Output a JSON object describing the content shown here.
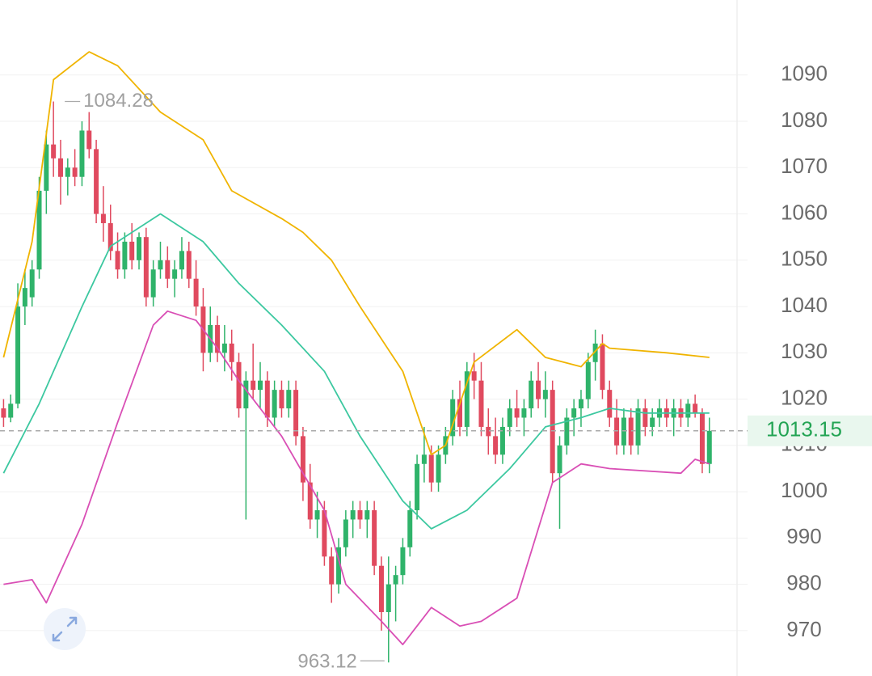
{
  "chart_data": {
    "type": "candlestick",
    "up_color": "#2fb36a",
    "down_color": "#e04a5f",
    "open": [
      1018,
      1016,
      1019,
      1040,
      1042,
      1048,
      1065,
      1075,
      1072,
      1068,
      1070,
      1068,
      1078,
      1074,
      1060,
      1058,
      1052,
      1048,
      1054,
      1050,
      1055,
      1042,
      1048,
      1050,
      1046,
      1048,
      1052,
      1046,
      1040,
      1030,
      1036,
      1030,
      1032,
      1028,
      1018,
      1024,
      1022,
      1024,
      1016,
      1022,
      1018,
      1022,
      1012,
      1002,
      994,
      996,
      986,
      980,
      988,
      994,
      996,
      994,
      996,
      984,
      974,
      980,
      982,
      988,
      996,
      1006,
      1008,
      1002,
      1008,
      1012,
      1020,
      1014,
      1026,
      1024,
      1014,
      1012,
      1008,
      1014,
      1018,
      1016,
      1018,
      1024,
      1020,
      1022,
      1004,
      1010,
      1016,
      1018,
      1020,
      1028,
      1032,
      1022,
      1016,
      1010,
      1016,
      1010,
      1018,
      1014,
      1016,
      1018,
      1016,
      1018,
      1016,
      1019,
      1017,
      1006
    ],
    "high": [
      1020,
      1021,
      1045,
      1048,
      1050,
      1068,
      1078,
      1084.28,
      1076,
      1072,
      1074,
      1080,
      1082,
      1076,
      1066,
      1062,
      1056,
      1056,
      1058,
      1056,
      1057,
      1050,
      1054,
      1053,
      1050,
      1055,
      1054,
      1050,
      1044,
      1040,
      1038,
      1036,
      1035,
      1030,
      1026,
      1032,
      1028,
      1026,
      1024,
      1024,
      1024,
      1024,
      1014,
      1006,
      1000,
      998,
      988,
      990,
      996,
      998,
      998,
      998,
      998,
      986,
      986,
      984,
      990,
      998,
      1008,
      1014,
      1010,
      1010,
      1014,
      1022,
      1024,
      1028,
      1030,
      1028,
      1018,
      1016,
      1016,
      1020,
      1022,
      1020,
      1026,
      1028,
      1026,
      1024,
      1012,
      1018,
      1020,
      1022,
      1030,
      1035,
      1034,
      1024,
      1020,
      1018,
      1018,
      1020,
      1020,
      1018,
      1020,
      1020,
      1020,
      1020,
      1020,
      1021,
      1018,
      1016
    ],
    "low": [
      1014,
      1015,
      1018,
      1036,
      1040,
      1046,
      1060,
      1068,
      1062,
      1064,
      1066,
      1066,
      1072,
      1058,
      1054,
      1050,
      1046,
      1046,
      1048,
      1048,
      1040,
      1040,
      1046,
      1044,
      1042,
      1046,
      1044,
      1038,
      1026,
      1028,
      1028,
      1026,
      1024,
      1016,
      994,
      1020,
      1018,
      1014,
      1014,
      1016,
      1016,
      1010,
      998,
      992,
      990,
      984,
      976,
      978,
      986,
      990,
      992,
      990,
      982,
      970,
      963.12,
      972,
      980,
      986,
      994,
      1002,
      1000,
      1000,
      1006,
      1010,
      1012,
      1012,
      1020,
      1012,
      1008,
      1006,
      1006,
      1012,
      1014,
      1012,
      1016,
      1018,
      1016,
      1002,
      992,
      1008,
      1012,
      1014,
      1018,
      1024,
      1020,
      1014,
      1008,
      1008,
      1008,
      1008,
      1012,
      1012,
      1014,
      1014,
      1012,
      1014,
      1014,
      1016,
      1004,
      1004
    ],
    "close": [
      1016,
      1019,
      1040,
      1044,
      1048,
      1065,
      1075,
      1072,
      1068,
      1070,
      1068,
      1078,
      1074,
      1060,
      1058,
      1052,
      1048,
      1054,
      1050,
      1055,
      1042,
      1048,
      1050,
      1046,
      1048,
      1052,
      1046,
      1040,
      1030,
      1036,
      1030,
      1032,
      1028,
      1018,
      1024,
      1022,
      1024,
      1016,
      1022,
      1018,
      1022,
      1012,
      1002,
      994,
      996,
      986,
      980,
      988,
      994,
      996,
      994,
      996,
      984,
      974,
      980,
      982,
      988,
      996,
      1006,
      1008,
      1002,
      1008,
      1012,
      1020,
      1014,
      1026,
      1024,
      1014,
      1012,
      1008,
      1014,
      1018,
      1016,
      1018,
      1024,
      1020,
      1022,
      1004,
      1010,
      1016,
      1018,
      1020,
      1028,
      1032,
      1022,
      1016,
      1010,
      1016,
      1010,
      1018,
      1014,
      1016,
      1018,
      1016,
      1018,
      1016,
      1019,
      1017,
      1006,
      1013.15
    ],
    "series": [
      {
        "color": "#f0b400",
        "x": [
          0,
          4,
          7,
          12,
          16,
          22,
          28,
          32,
          39,
          42,
          46,
          50,
          56,
          60,
          62,
          66,
          72,
          76,
          81,
          84,
          85,
          93,
          99
        ],
        "values": [
          1029,
          1054,
          1089,
          1095,
          1092,
          1082,
          1076,
          1065,
          1059,
          1056,
          1050,
          1040,
          1026,
          1008,
          1010,
          1028,
          1035,
          1029,
          1027,
          1032,
          1031,
          1030,
          1029
        ]
      },
      {
        "color": "#3cc8a0",
        "x": [
          0,
          5,
          11,
          15,
          22,
          28,
          33,
          39,
          45,
          50,
          56,
          60,
          65,
          71,
          76,
          81,
          85,
          90,
          99
        ],
        "values": [
          1004,
          1019,
          1040,
          1053,
          1060,
          1054,
          1045,
          1036,
          1026,
          1012,
          998,
          992,
          996,
          1005,
          1014,
          1016,
          1018,
          1017,
          1017
        ]
      },
      {
        "color": "#d94fb5",
        "x": [
          0,
          4,
          6,
          11,
          16,
          21,
          23,
          27,
          30,
          33,
          39,
          45,
          48,
          53,
          56,
          60,
          64,
          67,
          72,
          77,
          81,
          85,
          95,
          97,
          99
        ],
        "values": [
          980,
          981,
          976,
          993,
          1015,
          1036,
          1039,
          1037,
          1031,
          1024,
          1012,
          996,
          980,
          972,
          967,
          975,
          971,
          972,
          977,
          1002,
          1006,
          1005,
          1004,
          1007,
          1006
        ]
      }
    ],
    "xlim": [
      -0.5,
      100.5
    ],
    "ylim": [
      960.2,
      1106.2
    ],
    "yticks": [
      970,
      980,
      990,
      1000,
      1010,
      1020,
      1030,
      1040,
      1050,
      1060,
      1070,
      1080,
      1090
    ],
    "grid": true,
    "annotations": [
      {
        "value": 1084.28,
        "label": "1084.28",
        "index": 7
      },
      {
        "value": 963.12,
        "label": "963.12",
        "index": 54
      }
    ],
    "last_price": {
      "value": 1013.15,
      "label": "1013.15"
    }
  }
}
